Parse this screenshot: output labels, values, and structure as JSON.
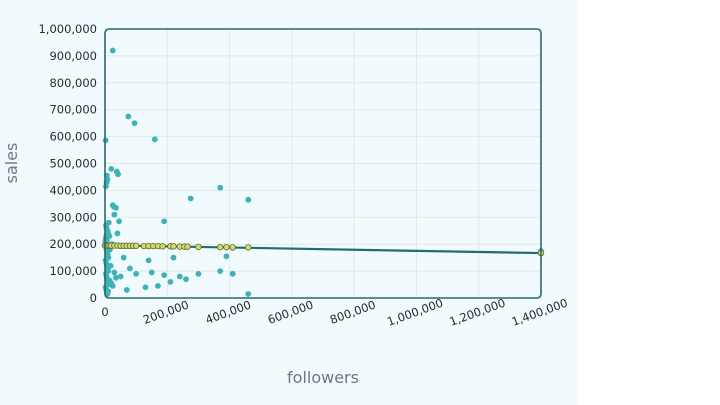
{
  "chart_data": {
    "type": "scatter",
    "xlabel": "followers",
    "ylabel": "sales",
    "xlim": [
      0,
      1400000
    ],
    "ylim": [
      0,
      1000000
    ],
    "x_ticks": [
      "0",
      "200,000",
      "400,000",
      "600,000",
      "800,000",
      "1,000,000",
      "1,200,000",
      "1,400,000"
    ],
    "y_ticks": [
      "0",
      "100,000",
      "200,000",
      "300,000",
      "400,000",
      "500,000",
      "600,000",
      "700,000",
      "800,000",
      "900,000",
      "1,000,000"
    ],
    "grid": true,
    "colors": {
      "points": "#3fb2b8",
      "fitted": "#d4dc62",
      "trend": "#1f6f6f",
      "frame": "#2a6b66",
      "grid": "#e3e7e9",
      "panel": "#f1fafd"
    },
    "series": [
      {
        "values": [
          [
            2000,
            586000
          ],
          [
            3000,
            415000
          ],
          [
            5000,
            430000
          ],
          [
            6000,
            455000
          ],
          [
            8000,
            440000
          ],
          [
            25000,
            920000
          ],
          [
            20000,
            480000
          ],
          [
            28000,
            340000
          ],
          [
            38000,
            470000
          ],
          [
            42000,
            460000
          ],
          [
            75000,
            675000
          ],
          [
            95000,
            650000
          ],
          [
            160000,
            590000
          ],
          [
            370000,
            410000
          ],
          [
            460000,
            365000
          ],
          [
            275000,
            370000
          ],
          [
            190000,
            285000
          ],
          [
            25000,
            345000
          ],
          [
            35000,
            335000
          ],
          [
            30000,
            310000
          ],
          [
            45000,
            285000
          ],
          [
            3000,
            270000
          ],
          [
            5000,
            260000
          ],
          [
            8000,
            250000
          ],
          [
            10000,
            240000
          ],
          [
            12000,
            280000
          ],
          [
            2000,
            220000
          ],
          [
            4000,
            230000
          ],
          [
            6000,
            215000
          ],
          [
            1000,
            210000
          ],
          [
            3000,
            190000
          ],
          [
            5000,
            180000
          ],
          [
            7000,
            170000
          ],
          [
            9000,
            160000
          ],
          [
            11000,
            150000
          ],
          [
            2000,
            140000
          ],
          [
            4000,
            130000
          ],
          [
            6000,
            120000
          ],
          [
            8000,
            110000
          ],
          [
            10000,
            100000
          ],
          [
            3000,
            90000
          ],
          [
            5000,
            80000
          ],
          [
            7000,
            70000
          ],
          [
            9000,
            60000
          ],
          [
            11000,
            50000
          ],
          [
            2000,
            40000
          ],
          [
            4000,
            30000
          ],
          [
            6000,
            20000
          ],
          [
            8000,
            15000
          ],
          [
            10000,
            25000
          ],
          [
            15000,
            65000
          ],
          [
            20000,
            55000
          ],
          [
            25000,
            45000
          ],
          [
            30000,
            95000
          ],
          [
            35000,
            75000
          ],
          [
            50000,
            80000
          ],
          [
            60000,
            150000
          ],
          [
            70000,
            30000
          ],
          [
            80000,
            110000
          ],
          [
            100000,
            90000
          ],
          [
            130000,
            40000
          ],
          [
            140000,
            140000
          ],
          [
            150000,
            95000
          ],
          [
            170000,
            45000
          ],
          [
            190000,
            85000
          ],
          [
            210000,
            60000
          ],
          [
            220000,
            150000
          ],
          [
            240000,
            80000
          ],
          [
            260000,
            70000
          ],
          [
            300000,
            90000
          ],
          [
            370000,
            100000
          ],
          [
            390000,
            155000
          ],
          [
            410000,
            90000
          ],
          [
            460000,
            15000
          ],
          [
            18000,
            120000
          ],
          [
            22000,
            200000
          ],
          [
            40000,
            240000
          ],
          [
            14000,
            230000
          ],
          [
            16000,
            180000
          ],
          [
            1400000,
            175000
          ]
        ]
      },
      {
        "values": [
          [
            0,
            195000
          ],
          [
            5000,
            195000
          ],
          [
            10000,
            195000
          ],
          [
            15000,
            195000
          ],
          [
            20000,
            195000
          ],
          [
            30000,
            195000
          ],
          [
            40000,
            195000
          ],
          [
            50000,
            194000
          ],
          [
            60000,
            194000
          ],
          [
            70000,
            194000
          ],
          [
            80000,
            194000
          ],
          [
            90000,
            194000
          ],
          [
            100000,
            194000
          ],
          [
            125000,
            193000
          ],
          [
            140000,
            193000
          ],
          [
            155000,
            193000
          ],
          [
            170000,
            193000
          ],
          [
            185000,
            192000
          ],
          [
            210000,
            192000
          ],
          [
            220000,
            192000
          ],
          [
            240000,
            191000
          ],
          [
            255000,
            191000
          ],
          [
            265000,
            191000
          ],
          [
            300000,
            190000
          ],
          [
            370000,
            189000
          ],
          [
            390000,
            189000
          ],
          [
            410000,
            188000
          ],
          [
            460000,
            188000
          ],
          [
            1400000,
            167000
          ]
        ]
      }
    ],
    "trend_line": [
      [
        0,
        196000
      ],
      [
        1400000,
        167000
      ]
    ]
  }
}
